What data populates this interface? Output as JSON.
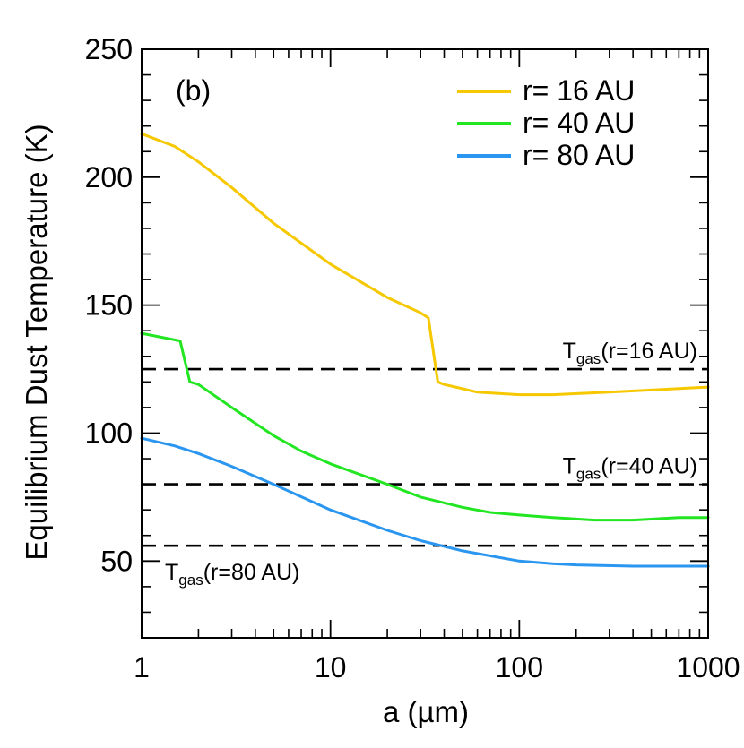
{
  "chart_data": {
    "type": "line",
    "panel_label": "(b)",
    "xlabel": "a (µm)",
    "ylabel": "Equilibrium Dust Temperature (K)",
    "xscale": "log",
    "xlim": [
      1,
      1000
    ],
    "ylim": [
      20,
      250
    ],
    "xticks": [
      {
        "value": 1,
        "label": "1"
      },
      {
        "value": 10,
        "label": "10"
      },
      {
        "value": 100,
        "label": "100"
      },
      {
        "value": 1000,
        "label": "1000"
      }
    ],
    "yticks": [
      {
        "value": 50,
        "label": "50"
      },
      {
        "value": 100,
        "label": "100"
      },
      {
        "value": 150,
        "label": "150"
      },
      {
        "value": 200,
        "label": "200"
      },
      {
        "value": 250,
        "label": "250"
      }
    ],
    "legend_position": "top-right",
    "series": [
      {
        "name": "r= 16 AU",
        "color": "#f5c800",
        "x": [
          1,
          1.5,
          2,
          3,
          5,
          10,
          20,
          30,
          33,
          37,
          40,
          60,
          100,
          150,
          300,
          1000
        ],
        "y": [
          217,
          212,
          206,
          196,
          182,
          166,
          153,
          147,
          145,
          120,
          119,
          116,
          115,
          115,
          116,
          118
        ]
      },
      {
        "name": "r= 40 AU",
        "color": "#22e622",
        "x": [
          1,
          1.6,
          1.8,
          2,
          3,
          5,
          7,
          10,
          20,
          30,
          50,
          70,
          100,
          150,
          250,
          400,
          700,
          1000
        ],
        "y": [
          139,
          136,
          120,
          119,
          110,
          99,
          93,
          88,
          80,
          75,
          71,
          69,
          68,
          67,
          66,
          66,
          67,
          67
        ]
      },
      {
        "name": "r= 80 AU",
        "color": "#2a96f0",
        "x": [
          1,
          1.5,
          2,
          3,
          5,
          10,
          20,
          30,
          50,
          100,
          150,
          200,
          400,
          700,
          1000
        ],
        "y": [
          98,
          95,
          92,
          87,
          80,
          70,
          62,
          58,
          54,
          50,
          49,
          48.5,
          48,
          48,
          48
        ]
      }
    ],
    "reference_lines": [
      {
        "y": 125,
        "label_main": "T",
        "label_sub": "gas",
        "label_rest": "(r=16 AU)",
        "label_anchor": "right"
      },
      {
        "y": 80,
        "label_main": "T",
        "label_sub": "gas",
        "label_rest": "(r=40 AU)",
        "label_anchor": "right"
      },
      {
        "y": 56,
        "label_main": "T",
        "label_sub": "gas",
        "label_rest": "(r=80 AU)",
        "label_anchor": "left"
      }
    ]
  }
}
